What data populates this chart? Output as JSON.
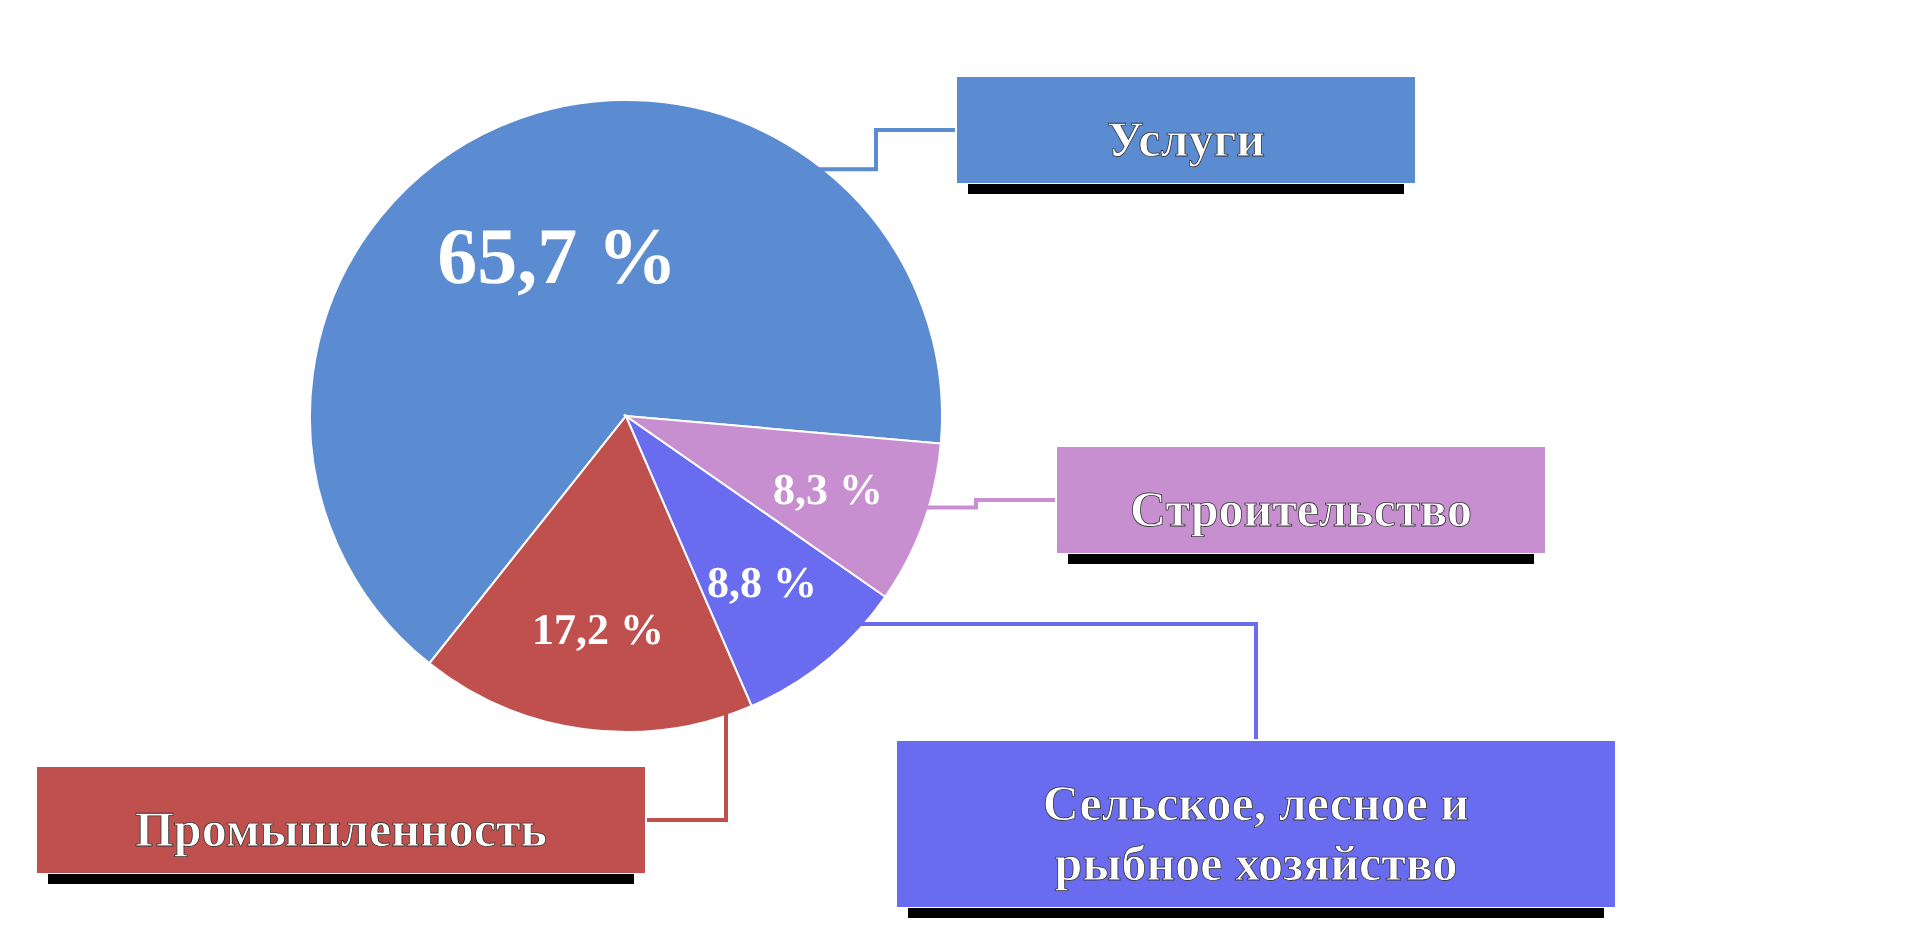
{
  "chart_data": {
    "type": "pie",
    "categories": [
      "Услуги",
      "Промышленность",
      "Сельское, лесное и рыбное хозяйство",
      "Строительство"
    ],
    "values": [
      65.7,
      17.2,
      8.8,
      8.3
    ],
    "colors": [
      "#5b8bd0",
      "#c0504d",
      "#6a6cf0",
      "#c78fd0"
    ],
    "value_labels": [
      "65,7 %",
      "17,2 %",
      "8,8 %",
      "8,3 %"
    ]
  }
}
